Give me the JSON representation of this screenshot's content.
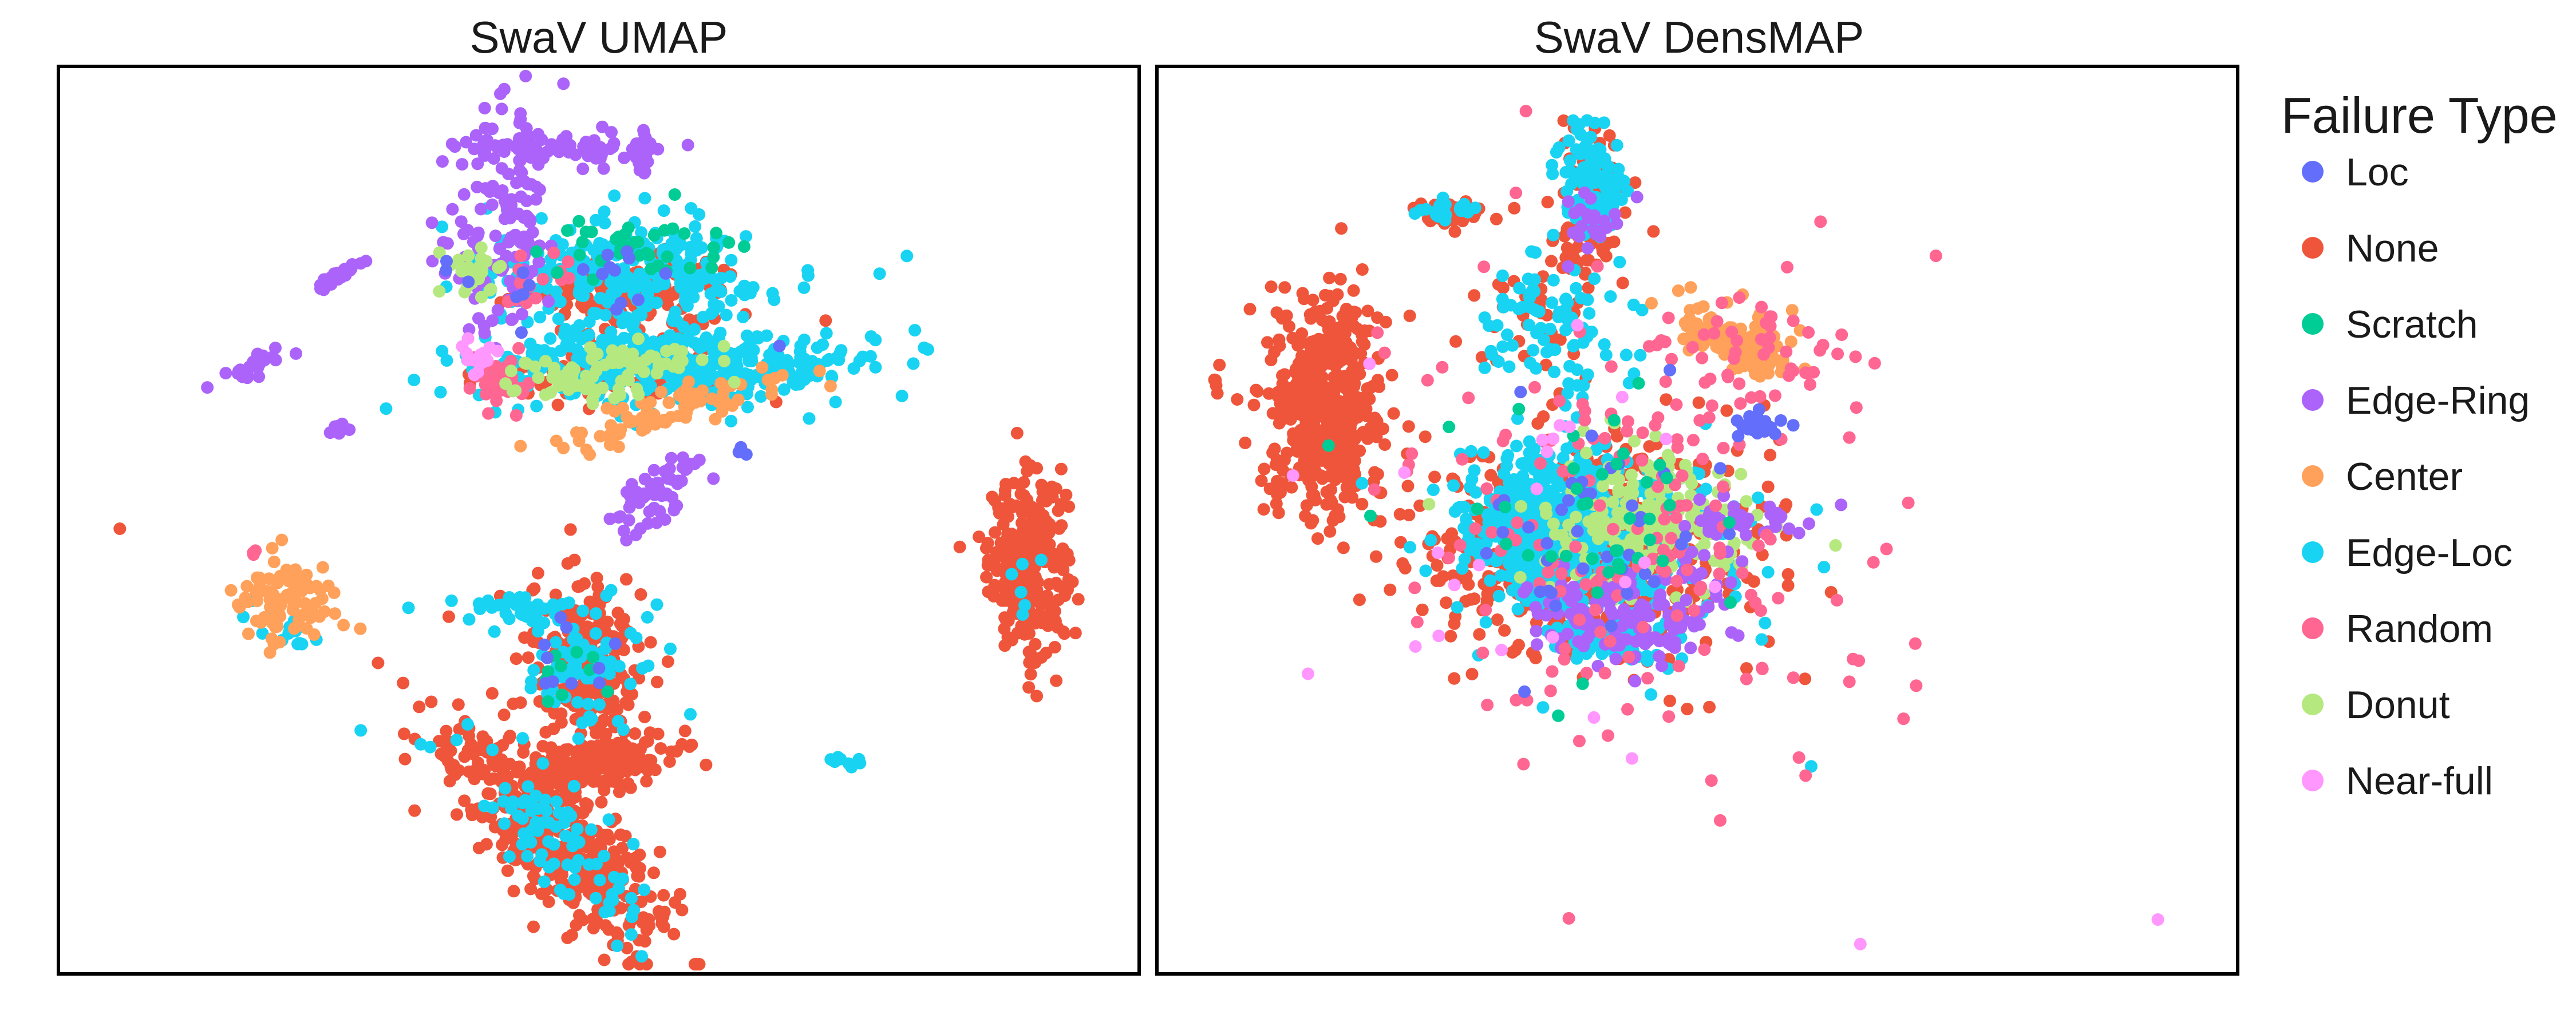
{
  "legend": {
    "title": "Failure Type",
    "placement": "right"
  },
  "chart_data": [
    {
      "type": "scatter",
      "title": "SwaV UMAP",
      "xlabel": "",
      "ylabel": "",
      "grid": false,
      "xlim": [
        0,
        100
      ],
      "ylim": [
        0,
        100
      ],
      "series": [
        {
          "name": "None",
          "color": "#EF553B",
          "clusters": [
            {
              "cx": 89.7,
              "cy": 45.3,
              "sx": 1.8,
              "sy": 4.8,
              "n": 300
            },
            {
              "cx": 50.0,
              "cy": 23.1,
              "sx": 3.2,
              "sy": 1.4,
              "rot": 0.25,
              "n": 180
            },
            {
              "cx": 49.0,
              "cy": 35.0,
              "sx": 2.8,
              "sy": 5.0,
              "n": 220
            },
            {
              "cx": 46.0,
              "cy": 15.0,
              "sx": 8.0,
              "sy": 2.8,
              "rot": -0.9,
              "n": 420
            },
            {
              "cx": 53.0,
              "cy": 75.0,
              "sx": 5.0,
              "sy": 2.2,
              "n": 140
            },
            {
              "cx": 53.0,
              "cy": 66.0,
              "sx": 6.0,
              "sy": 1.5,
              "n": 90
            },
            {
              "cx": 5.7,
              "cy": 49.0,
              "sx": 0.1,
              "sy": 0.1,
              "n": 1
            }
          ]
        },
        {
          "name": "Edge-Loc",
          "color": "#19D3F3",
          "clusters": [
            {
              "cx": 57.0,
              "cy": 67.0,
              "sx": 9.0,
              "sy": 2.0,
              "n": 420
            },
            {
              "cx": 52.0,
              "cy": 77.0,
              "sx": 7.0,
              "sy": 3.0,
              "n": 260
            },
            {
              "cx": 43.0,
              "cy": 40.0,
              "sx": 3.5,
              "sy": 1.0,
              "n": 40
            },
            {
              "cx": 49.0,
              "cy": 34.0,
              "sx": 3.0,
              "sy": 4.0,
              "n": 70
            },
            {
              "cx": 46.0,
              "cy": 15.0,
              "sx": 6.5,
              "sy": 2.2,
              "rot": -0.9,
              "n": 90
            },
            {
              "cx": 21.0,
              "cy": 38.0,
              "sx": 2.5,
              "sy": 0.8,
              "rot": -0.6,
              "n": 20
            },
            {
              "cx": 89.7,
              "cy": 45.0,
              "sx": 1.2,
              "sy": 3.0,
              "n": 6
            },
            {
              "cx": 72.0,
              "cy": 23.5,
              "sx": 1.5,
              "sy": 0.4,
              "n": 8
            }
          ]
        },
        {
          "name": "Edge-Ring",
          "color": "#AB63FA",
          "clusters": [
            {
              "cx": 41.5,
              "cy": 82.0,
              "sx": 2.6,
              "sy": 6.5,
              "n": 130
            },
            {
              "cx": 46.0,
              "cy": 91.0,
              "sx": 4.5,
              "sy": 1.0,
              "n": 70
            },
            {
              "cx": 54.0,
              "cy": 90.0,
              "sx": 0.4,
              "sy": 1.5,
              "n": 20
            },
            {
              "cx": 55.0,
              "cy": 53.0,
              "sx": 1.5,
              "sy": 2.5,
              "rot": -0.6,
              "n": 60
            },
            {
              "cx": 26.0,
              "cy": 77.0,
              "sx": 1.2,
              "sy": 0.3,
              "rot": 0.6,
              "n": 25
            },
            {
              "cx": 18.0,
              "cy": 67.0,
              "sx": 2.0,
              "sy": 0.5,
              "rot": 0.5,
              "n": 25
            },
            {
              "cx": 26.0,
              "cy": 60.0,
              "sx": 0.6,
              "sy": 0.3,
              "n": 10
            },
            {
              "cx": 54.0,
              "cy": 90.5,
              "sx": 0.6,
              "sy": 1.2,
              "n": 12
            }
          ]
        },
        {
          "name": "Center",
          "color": "#FFA15A",
          "clusters": [
            {
              "cx": 21.0,
              "cy": 41.0,
              "sx": 2.5,
              "sy": 2.5,
              "rot": -0.7,
              "n": 90
            },
            {
              "cx": 56.0,
              "cy": 62.0,
              "sx": 6.0,
              "sy": 1.0,
              "rot": 0.3,
              "n": 80
            }
          ]
        },
        {
          "name": "Random",
          "color": "#FF6692",
          "clusters": [
            {
              "cx": 41.0,
              "cy": 65.0,
              "sx": 1.5,
              "sy": 1.0,
              "n": 40
            },
            {
              "cx": 18.0,
              "cy": 46.5,
              "sx": 0.3,
              "sy": 0.3,
              "n": 3
            },
            {
              "cx": 44.0,
              "cy": 76.0,
              "sx": 2.0,
              "sy": 2.0,
              "n": 15
            }
          ]
        },
        {
          "name": "Donut",
          "color": "#B6E880",
          "clusters": [
            {
              "cx": 50.0,
              "cy": 66.5,
              "sx": 5.0,
              "sy": 1.2,
              "rot": 0.2,
              "n": 90
            },
            {
              "cx": 38.0,
              "cy": 78.0,
              "sx": 1.5,
              "sy": 1.5,
              "n": 25
            }
          ]
        },
        {
          "name": "Scratch",
          "color": "#00CC96",
          "clusters": [
            {
              "cx": 53.0,
              "cy": 80.0,
              "sx": 5.0,
              "sy": 2.0,
              "n": 40
            },
            {
              "cx": 47.0,
              "cy": 33.0,
              "sx": 2.0,
              "sy": 2.0,
              "n": 10
            }
          ]
        },
        {
          "name": "Loc",
          "color": "#636EFA",
          "clusters": [
            {
              "cx": 50.0,
              "cy": 76.0,
              "sx": 6.0,
              "sy": 3.0,
              "n": 20
            },
            {
              "cx": 47.0,
              "cy": 35.0,
              "sx": 2.0,
              "sy": 3.0,
              "n": 10
            },
            {
              "cx": 63.0,
              "cy": 58.0,
              "sx": 0.5,
              "sy": 0.5,
              "n": 3
            }
          ]
        },
        {
          "name": "Near-full",
          "color": "#FF97FF",
          "clusters": [
            {
              "cx": 39.0,
              "cy": 68.0,
              "sx": 0.8,
              "sy": 0.8,
              "n": 15
            }
          ]
        }
      ]
    },
    {
      "type": "scatter",
      "title": "SwaV DensMAP",
      "xlabel": "",
      "ylabel": "",
      "grid": false,
      "xlim": [
        0,
        100
      ],
      "ylim": [
        0,
        100
      ],
      "series": [
        {
          "name": "None",
          "color": "#EF553B",
          "clusters": [
            {
              "cx": 15.5,
              "cy": 62.5,
              "sx": 2.6,
              "sy": 6.0,
              "n": 520
            },
            {
              "cx": 27.0,
              "cy": 84.0,
              "sx": 1.6,
              "sy": 0.6,
              "n": 50
            },
            {
              "cx": 40.0,
              "cy": 84.0,
              "sx": 1.6,
              "sy": 4.0,
              "n": 90
            },
            {
              "cx": 40.0,
              "cy": 47.0,
              "sx": 8.0,
              "sy": 6.0,
              "n": 500
            },
            {
              "cx": 35.0,
              "cy": 72.0,
              "sx": 3.0,
              "sy": 4.0,
              "n": 40
            },
            {
              "cx": 5.5,
              "cy": 65.0,
              "sx": 0.3,
              "sy": 1.2,
              "n": 5
            }
          ]
        },
        {
          "name": "Edge-Loc",
          "color": "#19D3F3",
          "clusters": [
            {
              "cx": 36.0,
              "cy": 50.0,
              "sx": 4.0,
              "sy": 4.0,
              "n": 450
            },
            {
              "cx": 42.0,
              "cy": 47.0,
              "sx": 7.0,
              "sy": 6.0,
              "n": 180
            },
            {
              "cx": 40.0,
              "cy": 87.0,
              "sx": 1.3,
              "sy": 3.0,
              "n": 120
            },
            {
              "cx": 37.0,
              "cy": 72.0,
              "sx": 3.5,
              "sy": 4.0,
              "n": 90
            },
            {
              "cx": 27.0,
              "cy": 84.0,
              "sx": 1.2,
              "sy": 0.5,
              "n": 25
            },
            {
              "cx": 42.0,
              "cy": 37.0,
              "sx": 2.5,
              "sy": 1.5,
              "n": 60
            },
            {
              "cx": 60.5,
              "cy": 23.0,
              "sx": 0.1,
              "sy": 0.1,
              "n": 1
            }
          ]
        },
        {
          "name": "Donut",
          "color": "#B6E880",
          "clusters": [
            {
              "cx": 45.0,
              "cy": 50.0,
              "sx": 5.0,
              "sy": 4.0,
              "n": 200
            }
          ]
        },
        {
          "name": "Edge-Ring",
          "color": "#AB63FA",
          "clusters": [
            {
              "cx": 43.0,
              "cy": 39.0,
              "sx": 4.5,
              "sy": 2.5,
              "n": 130
            },
            {
              "cx": 54.0,
              "cy": 50.0,
              "sx": 3.0,
              "sy": 1.0,
              "n": 40
            },
            {
              "cx": 40.0,
              "cy": 82.0,
              "sx": 1.5,
              "sy": 2.0,
              "n": 25
            },
            {
              "cx": 50.0,
              "cy": 44.0,
              "sx": 2.0,
              "sy": 2.0,
              "n": 20
            }
          ]
        },
        {
          "name": "Center",
          "color": "#FFA15A",
          "clusters": [
            {
              "cx": 53.5,
              "cy": 70.0,
              "sx": 3.0,
              "sy": 1.5,
              "rot": -0.45,
              "n": 120
            }
          ]
        },
        {
          "name": "Random",
          "color": "#FF6692",
          "clusters": [
            {
              "cx": 45.0,
              "cy": 50.0,
              "sx": 11.0,
              "sy": 13.0,
              "n": 180
            },
            {
              "cx": 56.0,
              "cy": 68.0,
              "sx": 5.0,
              "sy": 2.5,
              "n": 40
            },
            {
              "cx": 34.0,
              "cy": 95.0,
              "sx": 0.1,
              "sy": 0.1,
              "n": 1
            },
            {
              "cx": 72.0,
              "cy": 79.0,
              "sx": 0.1,
              "sy": 0.1,
              "n": 1
            },
            {
              "cx": 69.0,
              "cy": 28.0,
              "sx": 0.1,
              "sy": 0.1,
              "n": 1
            },
            {
              "cx": 34.0,
              "cy": 23.0,
              "sx": 0.1,
              "sy": 0.1,
              "n": 1
            },
            {
              "cx": 38.0,
              "cy": 6.0,
              "sx": 0.1,
              "sy": 0.1,
              "n": 1
            }
          ]
        },
        {
          "name": "Loc",
          "color": "#636EFA",
          "clusters": [
            {
              "cx": 41.0,
              "cy": 48.0,
              "sx": 6.0,
              "sy": 6.0,
              "n": 40
            },
            {
              "cx": 55.5,
              "cy": 60.5,
              "sx": 1.0,
              "sy": 0.8,
              "n": 20
            }
          ]
        },
        {
          "name": "Scratch",
          "color": "#00CC96",
          "clusters": [
            {
              "cx": 40.0,
              "cy": 50.0,
              "sx": 7.0,
              "sy": 6.0,
              "n": 40
            }
          ]
        },
        {
          "name": "Near-full",
          "color": "#FF97FF",
          "clusters": [
            {
              "cx": 38.0,
              "cy": 50.0,
              "sx": 12.0,
              "sy": 12.0,
              "n": 25
            },
            {
              "cx": 92.5,
              "cy": 6.0,
              "sx": 0.1,
              "sy": 0.1,
              "n": 1
            },
            {
              "cx": 24.0,
              "cy": 36.0,
              "sx": 0.1,
              "sy": 0.1,
              "n": 1
            }
          ]
        }
      ]
    }
  ]
}
